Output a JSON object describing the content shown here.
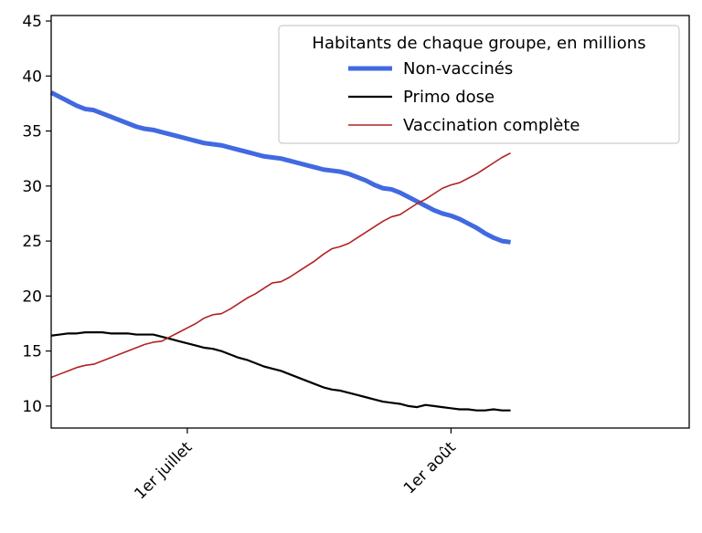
{
  "chart_data": {
    "type": "line",
    "title": "",
    "xlabel": "",
    "ylabel": "",
    "x_start": "2021-06-15",
    "x_ticks": [
      {
        "date": "2021-07-01",
        "label": "1er juillet"
      },
      {
        "date": "2021-08-01",
        "label": "1er août"
      }
    ],
    "xlim": [
      "2021-06-15",
      "2021-08-29"
    ],
    "ylim": [
      8,
      45.5
    ],
    "y_ticks": [
      10,
      15,
      20,
      25,
      30,
      35,
      40,
      45
    ],
    "grid": false,
    "legend": {
      "title": "Habitants de chaque groupe, en millions",
      "position": "top-right"
    },
    "series": [
      {
        "name": "Non-vaccinés",
        "color": "#4169e1",
        "line_width": 5,
        "values": [
          38.5,
          38.1,
          37.7,
          37.3,
          37.0,
          36.9,
          36.6,
          36.3,
          36.0,
          35.7,
          35.4,
          35.2,
          35.1,
          34.9,
          34.7,
          34.5,
          34.3,
          34.1,
          33.9,
          33.8,
          33.7,
          33.5,
          33.3,
          33.1,
          32.9,
          32.7,
          32.6,
          32.5,
          32.3,
          32.1,
          31.9,
          31.7,
          31.5,
          31.4,
          31.3,
          31.1,
          30.8,
          30.5,
          30.1,
          29.8,
          29.7,
          29.4,
          29.0,
          28.6,
          28.2,
          27.8,
          27.5,
          27.3,
          27.0,
          26.6,
          26.2,
          25.7,
          25.3,
          25.0,
          24.9
        ]
      },
      {
        "name": "Primo dose",
        "color": "#000000",
        "line_width": 2.2,
        "values": [
          16.4,
          16.5,
          16.6,
          16.6,
          16.7,
          16.7,
          16.7,
          16.6,
          16.6,
          16.6,
          16.5,
          16.5,
          16.5,
          16.3,
          16.1,
          15.9,
          15.7,
          15.5,
          15.3,
          15.2,
          15.0,
          14.7,
          14.4,
          14.2,
          13.9,
          13.6,
          13.4,
          13.2,
          12.9,
          12.6,
          12.3,
          12.0,
          11.7,
          11.5,
          11.4,
          11.2,
          11.0,
          10.8,
          10.6,
          10.4,
          10.3,
          10.2,
          10.0,
          9.9,
          10.1,
          10.0,
          9.9,
          9.8,
          9.7,
          9.7,
          9.6,
          9.6,
          9.7,
          9.6,
          9.6
        ]
      },
      {
        "name": "Vaccination complète",
        "color": "#b22222",
        "line_width": 1.6,
        "values": [
          12.6,
          12.9,
          13.2,
          13.5,
          13.7,
          13.8,
          14.1,
          14.4,
          14.7,
          15.0,
          15.3,
          15.6,
          15.8,
          15.9,
          16.3,
          16.7,
          17.1,
          17.5,
          18.0,
          18.3,
          18.4,
          18.8,
          19.3,
          19.8,
          20.2,
          20.7,
          21.2,
          21.3,
          21.7,
          22.2,
          22.7,
          23.2,
          23.8,
          24.3,
          24.5,
          24.8,
          25.3,
          25.8,
          26.3,
          26.8,
          27.2,
          27.4,
          27.9,
          28.4,
          28.8,
          29.3,
          29.8,
          30.1,
          30.3,
          30.7,
          31.1,
          31.6,
          32.1,
          32.6,
          33.0
        ]
      }
    ]
  }
}
